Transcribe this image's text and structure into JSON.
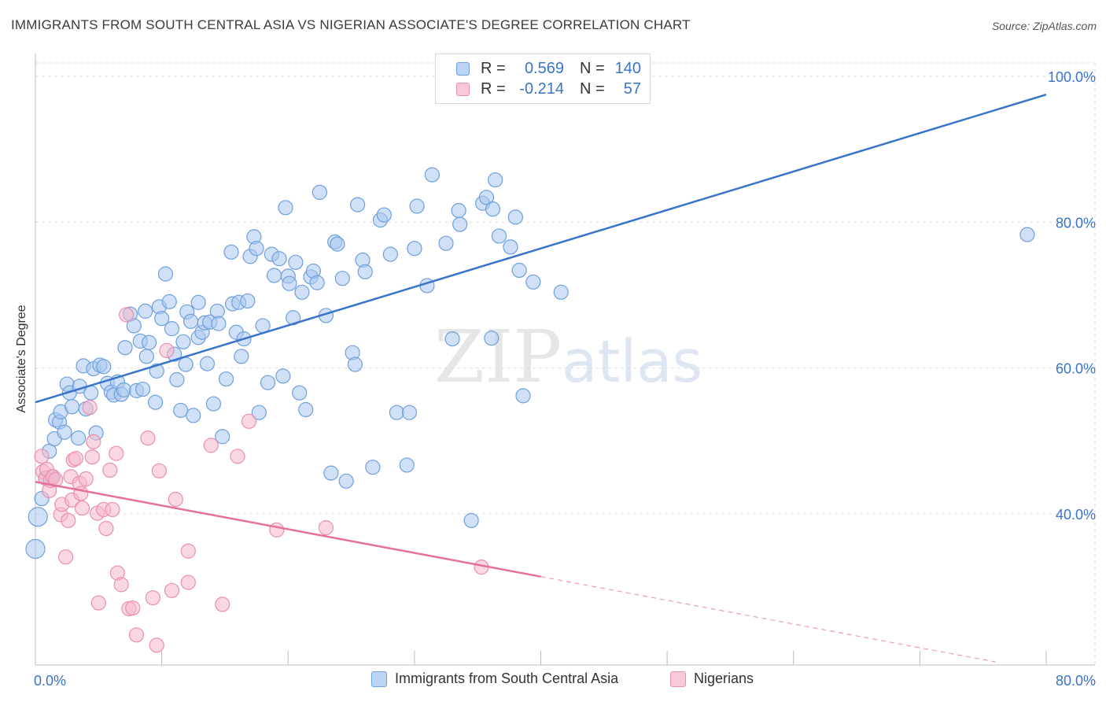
{
  "title": "IMMIGRANTS FROM SOUTH CENTRAL ASIA VS NIGERIAN ASSOCIATE'S DEGREE CORRELATION CHART",
  "source": "Source: ZipAtlas.com",
  "watermark": {
    "zip": "ZIP",
    "atlas": "atlas"
  },
  "legend": {
    "rows": [
      {
        "r_label": "R =",
        "r_value": "0.569",
        "n_label": "N =",
        "n_value": "140"
      },
      {
        "r_label": "R =",
        "r_value": "-0.214",
        "n_label": "N =",
        "n_value": "57"
      }
    ]
  },
  "colors": {
    "blue_fill": "#a9c8f0",
    "blue_stroke": "#6f9fdc",
    "blue_line": "#3a74c9",
    "pink_fill": "#f6b8cc",
    "pink_stroke": "#ea8fae",
    "pink_line": "#e5709a",
    "axis_text": "#3a74c9",
    "grid": "#dddddd"
  },
  "chart_data": {
    "type": "scatter",
    "title": "IMMIGRANTS FROM SOUTH CENTRAL ASIA VS NIGERIAN ASSOCIATE'S DEGREE CORRELATION CHART",
    "xlabel": "",
    "ylabel": "Associate's Degree",
    "xlim": [
      0,
      80
    ],
    "ylim": [
      20,
      100
    ],
    "x_tick_labels": [
      "0.0%",
      "80.0%"
    ],
    "y_tick_labels": [
      "40.0%",
      "60.0%",
      "80.0%",
      "100.0%"
    ],
    "y_ticks": [
      40,
      60,
      80,
      100
    ],
    "grid": true,
    "legend_position": "top-center",
    "series": [
      {
        "name": "Immigrants from South Central Asia",
        "color": "#6f9fdc",
        "R": 0.569,
        "N": 140,
        "trend": {
          "x0": 0,
          "y0": 55.3,
          "x1": 80,
          "y1": 97.5
        },
        "points": [
          [
            0,
            35.2
          ],
          [
            0.2,
            39.6
          ],
          [
            0.5,
            42.1
          ],
          [
            0.8,
            44.9
          ],
          [
            1.1,
            48.6
          ],
          [
            1.3,
            45.1
          ],
          [
            1.5,
            50.3
          ],
          [
            1.6,
            52.9
          ],
          [
            1.9,
            52.6
          ],
          [
            2.0,
            54.0
          ],
          [
            2.3,
            51.2
          ],
          [
            2.5,
            57.8
          ],
          [
            2.7,
            56.6
          ],
          [
            2.9,
            54.7
          ],
          [
            3.4,
            50.4
          ],
          [
            3.5,
            57.5
          ],
          [
            3.8,
            60.3
          ],
          [
            4.0,
            54.4
          ],
          [
            4.4,
            56.6
          ],
          [
            4.6,
            59.9
          ],
          [
            4.8,
            51.1
          ],
          [
            5.1,
            60.4
          ],
          [
            5.4,
            60.2
          ],
          [
            5.7,
            57.9
          ],
          [
            6.0,
            56.7
          ],
          [
            6.2,
            56.3
          ],
          [
            6.5,
            58.1
          ],
          [
            6.8,
            56.4
          ],
          [
            7.0,
            57.0
          ],
          [
            7.1,
            62.8
          ],
          [
            7.5,
            67.4
          ],
          [
            7.8,
            65.8
          ],
          [
            8.0,
            56.9
          ],
          [
            8.3,
            63.7
          ],
          [
            8.5,
            57.1
          ],
          [
            8.7,
            67.8
          ],
          [
            8.8,
            61.6
          ],
          [
            9.0,
            63.5
          ],
          [
            9.5,
            55.3
          ],
          [
            9.6,
            59.6
          ],
          [
            9.8,
            68.4
          ],
          [
            10.0,
            66.8
          ],
          [
            10.3,
            72.9
          ],
          [
            10.6,
            69.1
          ],
          [
            10.8,
            65.4
          ],
          [
            11.0,
            61.9
          ],
          [
            11.2,
            58.4
          ],
          [
            11.5,
            54.2
          ],
          [
            11.7,
            63.6
          ],
          [
            11.9,
            60.5
          ],
          [
            12.0,
            67.7
          ],
          [
            12.3,
            66.4
          ],
          [
            12.5,
            53.5
          ],
          [
            12.9,
            69.0
          ],
          [
            12.9,
            64.2
          ],
          [
            13.2,
            64.9
          ],
          [
            13.4,
            66.2
          ],
          [
            13.6,
            60.6
          ],
          [
            13.8,
            66.3
          ],
          [
            14.1,
            55.1
          ],
          [
            14.4,
            67.8
          ],
          [
            14.5,
            66.1
          ],
          [
            14.8,
            50.6
          ],
          [
            15.1,
            58.5
          ],
          [
            15.5,
            75.9
          ],
          [
            15.6,
            68.8
          ],
          [
            15.9,
            64.9
          ],
          [
            16.1,
            69.0
          ],
          [
            16.3,
            61.6
          ],
          [
            16.5,
            64.0
          ],
          [
            16.8,
            69.2
          ],
          [
            17.0,
            75.3
          ],
          [
            17.3,
            78.0
          ],
          [
            17.5,
            76.4
          ],
          [
            17.7,
            53.9
          ],
          [
            18.0,
            65.8
          ],
          [
            18.4,
            58.0
          ],
          [
            18.7,
            75.6
          ],
          [
            18.9,
            72.7
          ],
          [
            19.3,
            75.0
          ],
          [
            19.6,
            58.9
          ],
          [
            19.8,
            82.0
          ],
          [
            20.0,
            72.6
          ],
          [
            20.1,
            71.6
          ],
          [
            20.4,
            66.9
          ],
          [
            20.6,
            74.5
          ],
          [
            20.9,
            56.6
          ],
          [
            21.1,
            70.4
          ],
          [
            21.4,
            54.3
          ],
          [
            21.8,
            72.5
          ],
          [
            22.0,
            73.3
          ],
          [
            22.3,
            71.7
          ],
          [
            22.5,
            84.1
          ],
          [
            23.0,
            67.2
          ],
          [
            23.4,
            45.6
          ],
          [
            23.7,
            77.3
          ],
          [
            23.9,
            77.0
          ],
          [
            24.3,
            72.3
          ],
          [
            24.6,
            44.5
          ],
          [
            25.1,
            62.1
          ],
          [
            25.3,
            60.5
          ],
          [
            25.5,
            82.4
          ],
          [
            25.9,
            74.8
          ],
          [
            26.1,
            73.2
          ],
          [
            26.7,
            46.4
          ],
          [
            27.3,
            80.3
          ],
          [
            27.6,
            81.0
          ],
          [
            28.1,
            75.6
          ],
          [
            28.6,
            53.9
          ],
          [
            29.4,
            46.7
          ],
          [
            29.6,
            53.9
          ],
          [
            30.0,
            76.4
          ],
          [
            30.2,
            82.2
          ],
          [
            31.0,
            71.3
          ],
          [
            31.4,
            86.5
          ],
          [
            32.5,
            77.1
          ],
          [
            33.0,
            64.0
          ],
          [
            33.5,
            81.6
          ],
          [
            33.6,
            79.7
          ],
          [
            34.5,
            39.1
          ],
          [
            35.4,
            82.6
          ],
          [
            35.7,
            83.4
          ],
          [
            36.1,
            64.1
          ],
          [
            36.2,
            81.8
          ],
          [
            36.4,
            85.8
          ],
          [
            36.7,
            78.1
          ],
          [
            37.6,
            76.6
          ],
          [
            38.0,
            80.7
          ],
          [
            38.3,
            73.4
          ],
          [
            38.6,
            56.2
          ],
          [
            39.4,
            71.8
          ],
          [
            41.6,
            70.4
          ],
          [
            78.5,
            78.3
          ]
        ]
      },
      {
        "name": "Nigerians",
        "color": "#ea8fae",
        "R": -0.214,
        "N": 57,
        "trend": {
          "x0": 0,
          "y0": 44.4,
          "x1": 40,
          "y1": 31.4,
          "dash_to_x": 76,
          "dash_to_y": 19.7
        },
        "points": [
          [
            0.5,
            47.9
          ],
          [
            0.6,
            45.8
          ],
          [
            0.8,
            44.9
          ],
          [
            0.9,
            46.1
          ],
          [
            1.1,
            43.2
          ],
          [
            1.2,
            44.6
          ],
          [
            1.4,
            45.1
          ],
          [
            1.6,
            44.7
          ],
          [
            2.0,
            39.9
          ],
          [
            2.1,
            41.3
          ],
          [
            2.4,
            34.1
          ],
          [
            2.6,
            39.1
          ],
          [
            2.8,
            45.1
          ],
          [
            2.9,
            41.9
          ],
          [
            3.0,
            47.4
          ],
          [
            3.2,
            47.6
          ],
          [
            3.5,
            44.2
          ],
          [
            3.6,
            42.8
          ],
          [
            3.7,
            40.8
          ],
          [
            4.0,
            44.8
          ],
          [
            4.3,
            54.6
          ],
          [
            4.5,
            47.8
          ],
          [
            4.6,
            49.9
          ],
          [
            4.9,
            40.1
          ],
          [
            5.0,
            27.8
          ],
          [
            5.4,
            40.6
          ],
          [
            5.6,
            38.0
          ],
          [
            5.9,
            46.0
          ],
          [
            6.1,
            40.6
          ],
          [
            6.4,
            48.3
          ],
          [
            6.5,
            31.9
          ],
          [
            6.8,
            30.3
          ],
          [
            7.2,
            67.3
          ],
          [
            7.4,
            27.0
          ],
          [
            7.7,
            27.1
          ],
          [
            8.0,
            23.4
          ],
          [
            8.9,
            50.4
          ],
          [
            9.3,
            28.5
          ],
          [
            9.6,
            22.0
          ],
          [
            9.8,
            45.9
          ],
          [
            10.4,
            62.4
          ],
          [
            10.8,
            29.5
          ],
          [
            11.1,
            42.0
          ],
          [
            12.1,
            34.9
          ],
          [
            12.1,
            30.6
          ],
          [
            13.9,
            49.4
          ],
          [
            14.8,
            27.6
          ],
          [
            16.0,
            47.9
          ],
          [
            16.9,
            52.7
          ],
          [
            19.1,
            37.8
          ],
          [
            23.0,
            38.1
          ],
          [
            35.3,
            32.7
          ]
        ]
      }
    ]
  },
  "bottom_legend": {
    "items": [
      {
        "label": "Immigrants from South Central Asia"
      },
      {
        "label": "Nigerians"
      }
    ]
  }
}
